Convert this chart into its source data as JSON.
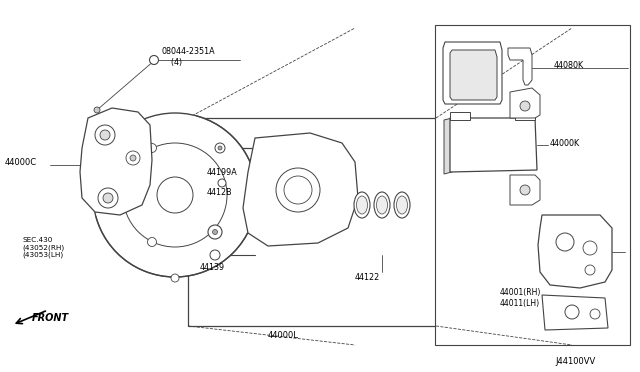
{
  "bg_color": "#ffffff",
  "line_color": "#444444",
  "text_color": "#000000",
  "diagram_id": "J44100VV",
  "labels": {
    "bolt": "08044-2351A\n    (4)",
    "caliper_body": "44000C",
    "sec_label": "SEC.430\n(43052(RH)\n(43053(LH)",
    "front_label": "FRONT",
    "guide_pin_a": "44199A",
    "guide_pin_b": "4412B",
    "slide_pin": "44139",
    "piston": "44122",
    "caliper_assy": "44000L",
    "pad_kit": "44000K",
    "shim_kit": "44080K",
    "bracket_rh": "44001(RH)\n44011(LH)"
  }
}
